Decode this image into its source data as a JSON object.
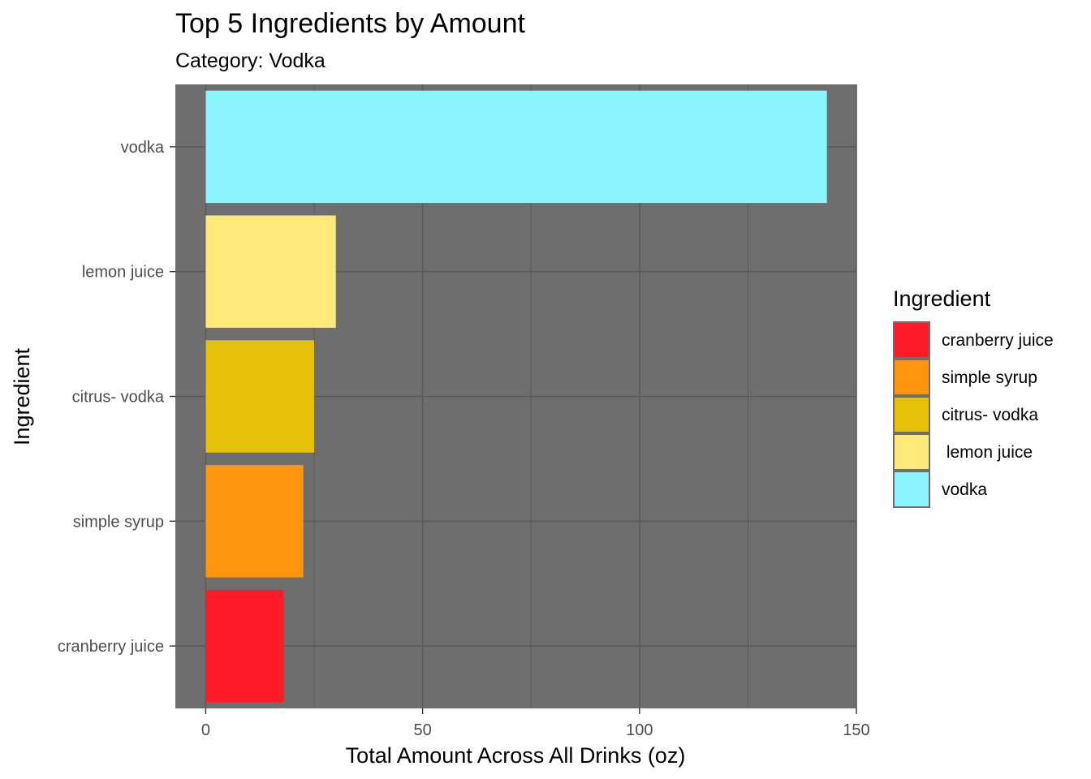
{
  "chart_data": {
    "type": "bar",
    "orientation": "horizontal",
    "title": "Top 5 Ingredients by Amount",
    "subtitle": "Category: Vodka",
    "xlabel": "Total Amount Across All Drinks (oz)",
    "ylabel": "Ingredient",
    "xlim": [
      -7,
      150
    ],
    "x_ticks": [
      "0",
      "50",
      "100",
      "150"
    ],
    "categories": [
      "vodka",
      "lemon juice",
      "citrus- vodka",
      "simple syrup",
      "cranberry juice"
    ],
    "values": [
      143.2,
      30,
      25,
      22.5,
      18
    ],
    "bar_colors": [
      "#8AF4FF",
      "#FFE97A",
      "#E6C10A",
      "#FF950E",
      "#FF1B27"
    ],
    "panel_background": "#6E6E6E",
    "grid": true,
    "legend": {
      "title": "Ingredient",
      "position": "right",
      "items": [
        {
          "label": "cranberry juice",
          "color": "#FF1B27"
        },
        {
          "label": "simple syrup",
          "color": "#FF950E"
        },
        {
          "label": "citrus- vodka",
          "color": "#E6C10A"
        },
        {
          "label": " lemon juice",
          "color": "#FFE97A"
        },
        {
          "label": "vodka",
          "color": "#8AF4FF"
        }
      ]
    }
  }
}
